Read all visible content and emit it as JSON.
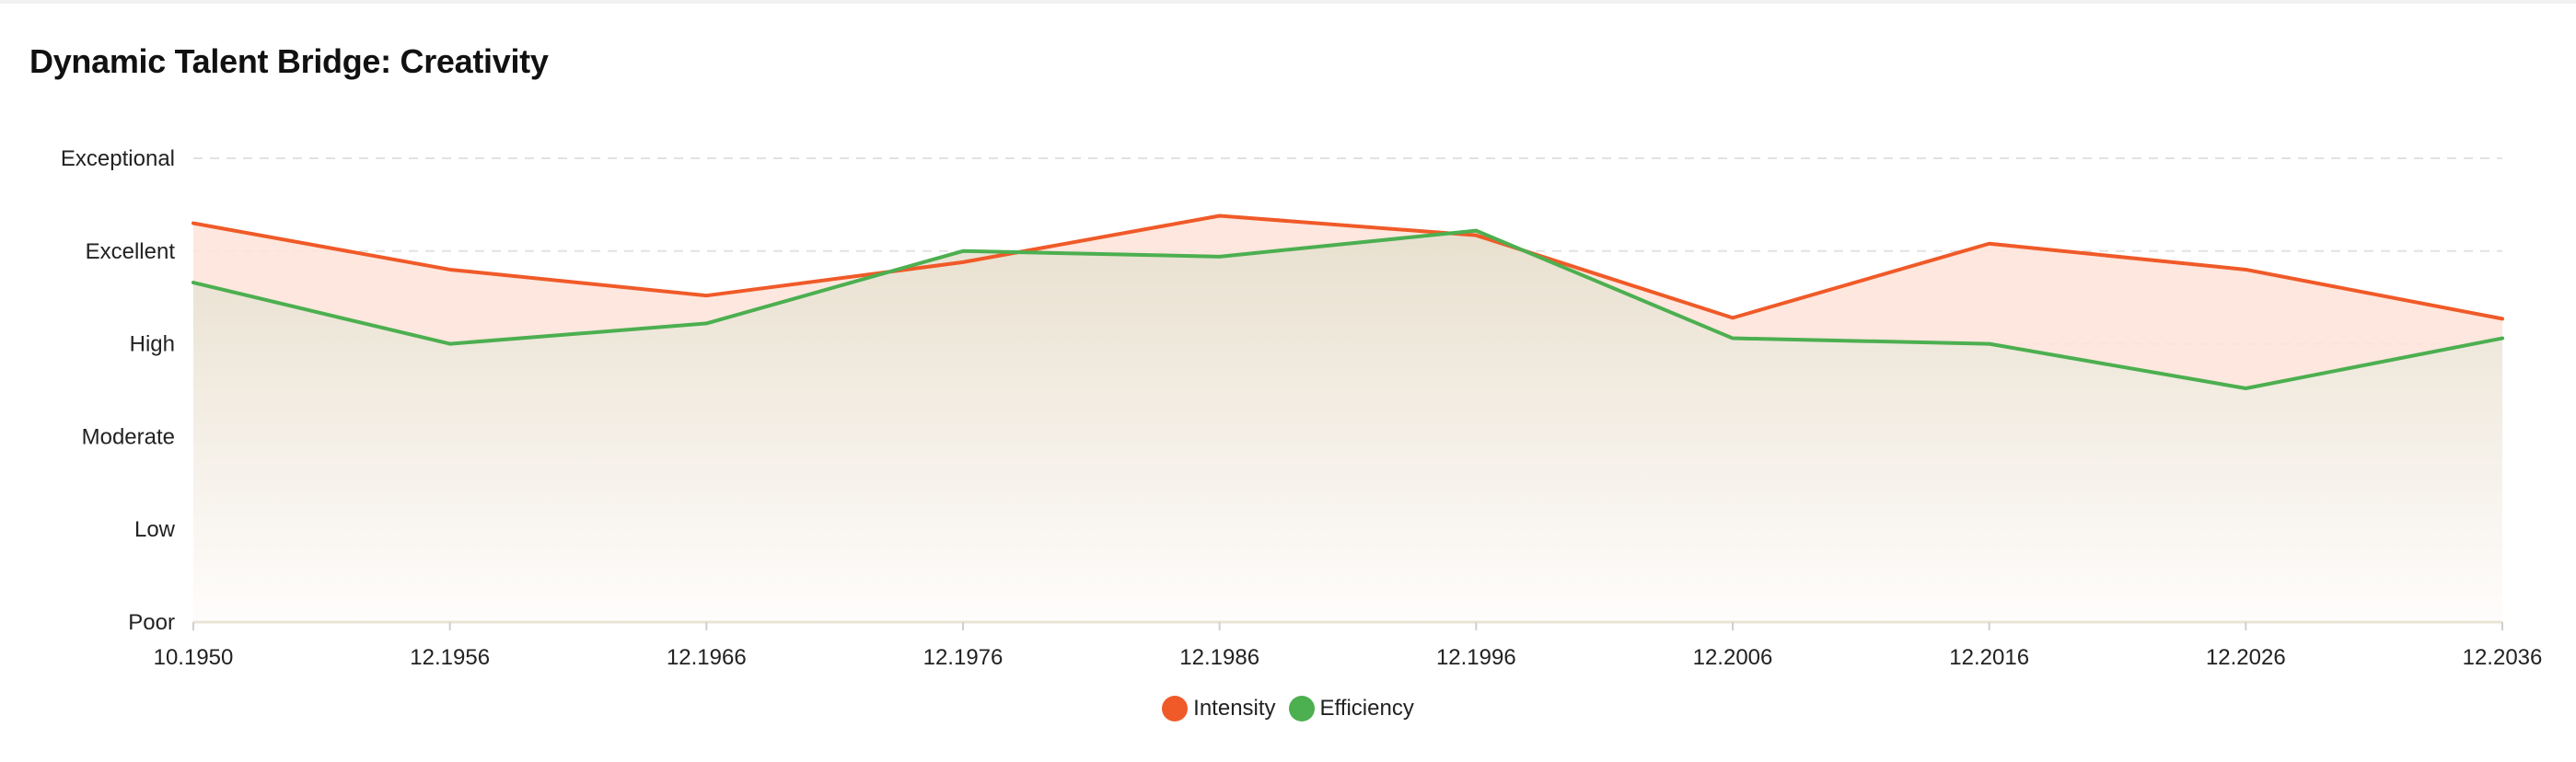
{
  "chart_data": {
    "type": "area",
    "title": "Dynamic Talent Bridge: Creativity",
    "xlabel": "",
    "ylabel": "",
    "categories": [
      "10.1950",
      "12.1956",
      "12.1966",
      "12.1976",
      "12.1986",
      "12.1996",
      "12.2006",
      "12.2016",
      "12.2026",
      "12.2036"
    ],
    "y_levels": [
      "Poor",
      "Low",
      "Moderate",
      "High",
      "Excellent",
      "Exceptional"
    ],
    "ylim": [
      0,
      5
    ],
    "grid": true,
    "legend_position": "bottom-center",
    "series": [
      {
        "name": "Intensity",
        "color": "#f05a28",
        "fill": "#fde3d8",
        "values": [
          4.3,
          3.8,
          3.52,
          3.88,
          4.38,
          4.17,
          3.28,
          4.08,
          3.8,
          3.27
        ]
      },
      {
        "name": "Efficiency",
        "color": "#4caf50",
        "fill": "#e6e2d2",
        "values": [
          3.66,
          3.0,
          3.22,
          4.0,
          3.94,
          4.22,
          3.06,
          3.0,
          2.52,
          3.06
        ]
      }
    ]
  },
  "colors": {
    "grid": "#e2e2e2",
    "axis": "#e8e4d4",
    "text": "#222222"
  }
}
